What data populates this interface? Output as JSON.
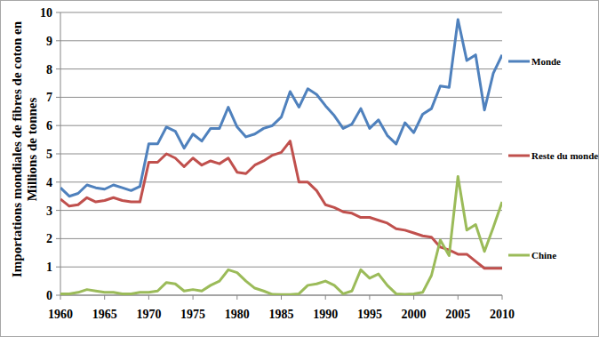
{
  "chart_data": {
    "type": "line",
    "y_label": "Importations mondiales de fibres de coton en Millions de tonnes",
    "x": [
      1960,
      1961,
      1962,
      1963,
      1964,
      1965,
      1966,
      1967,
      1968,
      1969,
      1970,
      1971,
      1972,
      1973,
      1974,
      1975,
      1976,
      1977,
      1978,
      1979,
      1980,
      1981,
      1982,
      1983,
      1984,
      1985,
      1986,
      1987,
      1988,
      1989,
      1990,
      1991,
      1992,
      1993,
      1994,
      1995,
      1996,
      1997,
      1998,
      1999,
      2000,
      2001,
      2002,
      2003,
      2004,
      2005,
      2006,
      2007,
      2008,
      2009,
      2010
    ],
    "series": [
      {
        "name": "Monde",
        "color": "#4f81bd",
        "values": [
          3.8,
          3.5,
          3.6,
          3.9,
          3.8,
          3.75,
          3.9,
          3.8,
          3.7,
          3.85,
          5.35,
          5.35,
          5.95,
          5.8,
          5.2,
          5.7,
          5.45,
          5.9,
          5.9,
          6.65,
          5.95,
          5.6,
          5.7,
          5.9,
          6.0,
          6.3,
          7.2,
          6.65,
          7.3,
          7.1,
          6.7,
          6.35,
          5.9,
          6.05,
          6.6,
          5.9,
          6.2,
          5.65,
          5.35,
          6.1,
          5.75,
          6.4,
          6.6,
          7.4,
          7.35,
          9.75,
          8.3,
          8.5,
          6.55,
          7.85,
          8.5
        ]
      },
      {
        "name": "Reste du monde",
        "color": "#c0504d",
        "values": [
          3.4,
          3.15,
          3.2,
          3.45,
          3.3,
          3.35,
          3.45,
          3.35,
          3.3,
          3.3,
          4.7,
          4.7,
          5.0,
          4.85,
          4.55,
          4.85,
          4.6,
          4.75,
          4.65,
          4.85,
          4.35,
          4.3,
          4.6,
          4.75,
          4.95,
          5.05,
          5.45,
          4.0,
          4.0,
          3.7,
          3.2,
          3.1,
          2.95,
          2.9,
          2.75,
          2.75,
          2.65,
          2.55,
          2.35,
          2.3,
          2.2,
          2.1,
          2.05,
          1.7,
          1.6,
          1.45,
          1.45,
          1.2,
          0.95,
          0.95,
          0.95
        ]
      },
      {
        "name": "Chine",
        "color": "#9bbb59",
        "values": [
          0.05,
          0.05,
          0.1,
          0.2,
          0.15,
          0.1,
          0.1,
          0.05,
          0.05,
          0.1,
          0.1,
          0.15,
          0.45,
          0.4,
          0.15,
          0.2,
          0.15,
          0.35,
          0.5,
          0.9,
          0.8,
          0.5,
          0.25,
          0.15,
          0.03,
          0.02,
          0.02,
          0.05,
          0.35,
          0.4,
          0.5,
          0.35,
          0.05,
          0.15,
          0.9,
          0.6,
          0.75,
          0.35,
          0.05,
          0.03,
          0.05,
          0.1,
          0.7,
          1.95,
          1.4,
          4.2,
          2.3,
          2.5,
          1.55,
          2.4,
          3.3
        ]
      }
    ],
    "xlim": [
      1960,
      2010
    ],
    "xticks": [
      1960,
      1965,
      1970,
      1975,
      1980,
      1985,
      1990,
      1995,
      2000,
      2005,
      2010
    ],
    "ylim": [
      0,
      10
    ],
    "yticks": [
      0,
      1,
      2,
      3,
      4,
      5,
      6,
      7,
      8,
      9,
      10
    ],
    "grid": true,
    "legend": "right"
  }
}
